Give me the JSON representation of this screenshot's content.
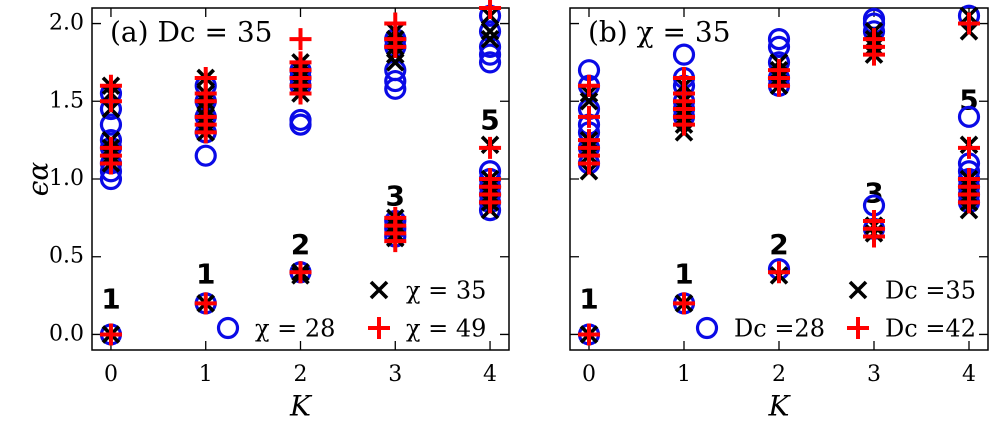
{
  "chart_data": [
    {
      "type": "scatter",
      "title": "(a) Dc = 35",
      "xlabel": "K",
      "ylabel": "ϵα",
      "xlim": [
        -0.2,
        4.2
      ],
      "ylim": [
        -0.1,
        2.1
      ],
      "xticks": [
        0,
        1,
        2,
        3,
        4
      ],
      "yticks": [
        {
          "value": 0,
          "label": "0.0"
        },
        {
          "value": 0.5,
          "label": "0.5"
        },
        {
          "value": 1,
          "label": "1.0"
        },
        {
          "value": 1.5,
          "label": "1.5"
        },
        {
          "value": 2,
          "label": "2.0"
        }
      ],
      "ytick_labels": true,
      "annotations": [
        {
          "text": "1",
          "x": 0,
          "y": 0.22
        },
        {
          "text": "1",
          "x": 1,
          "y": 0.38
        },
        {
          "text": "2",
          "x": 2,
          "y": 0.57
        },
        {
          "text": "3",
          "x": 3,
          "y": 0.88
        },
        {
          "text": "5",
          "x": 4,
          "y": 1.37
        }
      ],
      "series": [
        {
          "name": "χ = 35",
          "color": "#000000",
          "marker": "x",
          "x": [
            0,
            0,
            0,
            0,
            0,
            0,
            0,
            0,
            1,
            1,
            1,
            1,
            1,
            1,
            1,
            1,
            2,
            2,
            2,
            2,
            2,
            2,
            2,
            3,
            3,
            3,
            3,
            3,
            3,
            3,
            3,
            3,
            4,
            4,
            4,
            4,
            4,
            4,
            4,
            4,
            4
          ],
          "values": [
            0,
            1.1,
            1.15,
            1.2,
            1.25,
            1.45,
            1.55,
            1.6,
            0.2,
            1.3,
            1.35,
            1.4,
            1.45,
            1.5,
            1.55,
            1.65,
            0.38,
            0.4,
            1.55,
            1.6,
            1.65,
            1.7,
            1.75,
            0.62,
            0.65,
            0.7,
            0.75,
            1.75,
            1.8,
            1.85,
            1.9,
            1.95,
            0.8,
            0.85,
            0.9,
            0.95,
            1.0,
            1.22,
            1.9,
            1.95,
            2.05
          ]
        },
        {
          "name": "χ = 28",
          "color": "#0a0ae6",
          "marker": "o",
          "x": [
            0,
            0,
            0,
            0,
            0,
            0,
            0,
            0,
            0,
            1,
            1,
            1,
            1,
            1,
            1,
            2,
            2,
            2,
            2,
            2,
            2,
            3,
            3,
            3,
            3,
            3,
            3,
            3,
            3,
            4,
            4,
            4,
            4,
            4,
            4,
            4,
            4,
            4,
            4,
            4
          ],
          "values": [
            0,
            1.0,
            1.05,
            1.1,
            1.2,
            1.25,
            1.35,
            1.45,
            1.55,
            0.2,
            1.15,
            1.3,
            1.4,
            1.5,
            1.6,
            0.4,
            1.35,
            1.38,
            1.6,
            1.65,
            1.7,
            0.63,
            0.68,
            0.73,
            1.58,
            1.63,
            1.7,
            1.85,
            1.9,
            0.8,
            0.85,
            0.9,
            0.95,
            1.0,
            1.05,
            1.75,
            1.8,
            1.85,
            1.95,
            2.05
          ]
        },
        {
          "name": "χ = 49",
          "color": "#ff0000",
          "marker": "+",
          "x": [
            0,
            0,
            0,
            0,
            0,
            0,
            1,
            1,
            1,
            1,
            1,
            1,
            1,
            2,
            2,
            2,
            2,
            2,
            2,
            2,
            3,
            3,
            3,
            3,
            3,
            3,
            3,
            4,
            4,
            4,
            4,
            4,
            4
          ],
          "values": [
            0,
            1.1,
            1.15,
            1.2,
            1.5,
            1.6,
            0.2,
            1.3,
            1.35,
            1.4,
            1.5,
            1.55,
            1.65,
            0.4,
            1.55,
            1.6,
            1.65,
            1.7,
            1.75,
            1.9,
            0.6,
            0.65,
            0.7,
            0.75,
            1.85,
            1.9,
            2.0,
            0.85,
            0.9,
            0.95,
            1.0,
            1.2,
            2.1
          ]
        }
      ]
    },
    {
      "type": "scatter",
      "title": "(b) χ = 35",
      "xlabel": "K",
      "xlim": [
        -0.2,
        4.2
      ],
      "ylim": [
        -0.1,
        2.1
      ],
      "xticks": [
        0,
        1,
        2,
        3,
        4
      ],
      "yticks": [
        0,
        0.5,
        1,
        1.5,
        2
      ],
      "ytick_labels": false,
      "annotations": [
        {
          "text": "1",
          "x": 0,
          "y": 0.22
        },
        {
          "text": "1",
          "x": 1,
          "y": 0.38
        },
        {
          "text": "2",
          "x": 2,
          "y": 0.57
        },
        {
          "text": "3",
          "x": 3,
          "y": 0.9
        },
        {
          "text": "5",
          "x": 4,
          "y": 1.5
        }
      ],
      "series": [
        {
          "name": "Dc =35",
          "color": "#000000",
          "marker": "x",
          "x": [
            0,
            0,
            0,
            0,
            0,
            0,
            0,
            1,
            1,
            1,
            1,
            1,
            1,
            1,
            2,
            2,
            2,
            2,
            2,
            3,
            3,
            3,
            3,
            3,
            3,
            4,
            4,
            4,
            4,
            4,
            4,
            4,
            4
          ],
          "values": [
            0,
            1.05,
            1.15,
            1.2,
            1.25,
            1.5,
            1.55,
            0.2,
            1.3,
            1.35,
            1.4,
            1.45,
            1.5,
            1.6,
            0.38,
            1.6,
            1.65,
            1.7,
            1.75,
            0.65,
            0.7,
            1.8,
            1.85,
            1.9,
            1.95,
            0.8,
            0.85,
            0.9,
            0.95,
            1.0,
            1.22,
            1.95,
            2.05
          ]
        },
        {
          "name": "Dc =28",
          "color": "#0a0ae6",
          "marker": "o",
          "x": [
            0,
            0,
            0,
            0,
            0,
            0,
            0,
            0,
            1,
            1,
            1,
            1,
            1,
            1,
            1,
            2,
            2,
            2,
            2,
            2,
            2,
            3,
            3,
            3,
            3,
            3,
            4,
            4,
            4,
            4,
            4,
            4,
            4,
            4
          ],
          "values": [
            0,
            1.1,
            1.2,
            1.3,
            1.35,
            1.45,
            1.6,
            1.7,
            0.2,
            1.4,
            1.45,
            1.5,
            1.6,
            1.65,
            1.8,
            0.42,
            1.6,
            1.65,
            1.75,
            1.85,
            1.9,
            0.68,
            0.83,
            1.95,
            2.0,
            2.03,
            0.85,
            0.9,
            0.95,
            1.0,
            1.05,
            1.1,
            1.4,
            2.05
          ]
        },
        {
          "name": "Dc =42",
          "color": "#ff0000",
          "marker": "+",
          "x": [
            0,
            0,
            0,
            0,
            0,
            0,
            0,
            1,
            1,
            1,
            1,
            1,
            1,
            1,
            2,
            2,
            2,
            2,
            3,
            3,
            3,
            3,
            3,
            3,
            4,
            4,
            4,
            4,
            4,
            4
          ],
          "values": [
            0,
            1.1,
            1.15,
            1.2,
            1.25,
            1.4,
            1.6,
            0.2,
            1.35,
            1.4,
            1.45,
            1.5,
            1.55,
            1.65,
            0.4,
            1.6,
            1.65,
            1.7,
            0.63,
            0.68,
            0.73,
            1.8,
            1.85,
            1.9,
            0.85,
            0.9,
            0.95,
            1.0,
            1.2,
            2.0
          ]
        }
      ]
    }
  ]
}
